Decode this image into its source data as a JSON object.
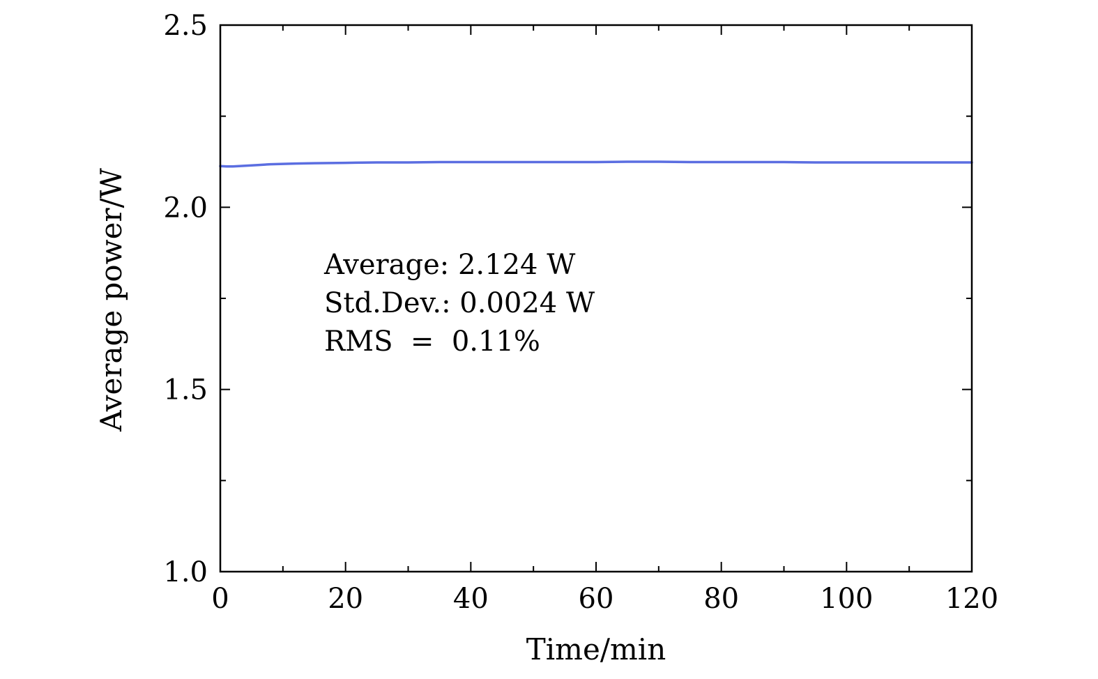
{
  "chart_data": {
    "type": "line",
    "xlabel": "Time/min",
    "ylabel": "Average power/W",
    "xlim": [
      0,
      120
    ],
    "ylim": [
      1.0,
      2.5
    ],
    "x_ticks": [
      0,
      20,
      40,
      60,
      80,
      100,
      120
    ],
    "x_tick_labels": [
      "0",
      "20",
      "40",
      "60",
      "80",
      "100",
      "120"
    ],
    "x_minor_ticks": [
      10,
      30,
      50,
      70,
      90,
      110
    ],
    "y_ticks": [
      1.0,
      1.5,
      2.0,
      2.5
    ],
    "y_tick_labels": [
      "1.0",
      "1.5",
      "2.0",
      "2.5"
    ],
    "y_minor_ticks": [
      1.25,
      1.75,
      2.25
    ],
    "grid": false,
    "legend": "none",
    "series": [
      {
        "color": "#5b6ee1",
        "x": [
          0,
          1,
          2,
          3,
          4,
          5,
          6,
          8,
          10,
          12,
          15,
          20,
          25,
          30,
          35,
          40,
          45,
          50,
          55,
          60,
          65,
          70,
          75,
          80,
          85,
          90,
          95,
          100,
          105,
          110,
          115,
          120
        ],
        "y": [
          2.113,
          2.112,
          2.112,
          2.113,
          2.114,
          2.115,
          2.116,
          2.118,
          2.119,
          2.12,
          2.121,
          2.122,
          2.123,
          2.123,
          2.124,
          2.124,
          2.124,
          2.124,
          2.124,
          2.124,
          2.125,
          2.125,
          2.124,
          2.124,
          2.124,
          2.124,
          2.123,
          2.123,
          2.123,
          2.123,
          2.123,
          2.123
        ]
      }
    ],
    "annotations": [
      "Average: 2.124 W",
      "Std.Dev.: 0.0024 W",
      "RMS  =  0.11%"
    ]
  }
}
